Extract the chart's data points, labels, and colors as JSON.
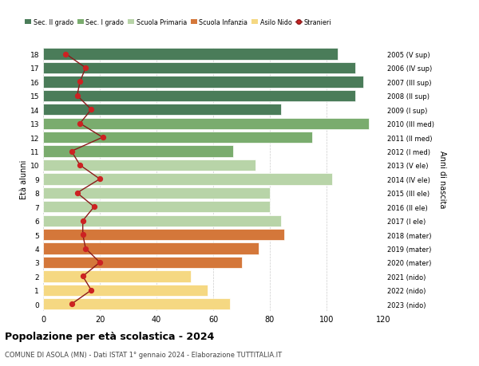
{
  "ages": [
    18,
    17,
    16,
    15,
    14,
    13,
    12,
    11,
    10,
    9,
    8,
    7,
    6,
    5,
    4,
    3,
    2,
    1,
    0
  ],
  "years": [
    "2005 (V sup)",
    "2006 (IV sup)",
    "2007 (III sup)",
    "2008 (II sup)",
    "2009 (I sup)",
    "2010 (III med)",
    "2011 (II med)",
    "2012 (I med)",
    "2013 (V ele)",
    "2014 (IV ele)",
    "2015 (III ele)",
    "2016 (II ele)",
    "2017 (I ele)",
    "2018 (mater)",
    "2019 (mater)",
    "2020 (mater)",
    "2021 (nido)",
    "2022 (nido)",
    "2023 (nido)"
  ],
  "bar_values": [
    104,
    110,
    113,
    110,
    84,
    115,
    95,
    67,
    75,
    102,
    80,
    80,
    84,
    85,
    76,
    70,
    52,
    58,
    66
  ],
  "stranieri": [
    8,
    15,
    13,
    12,
    17,
    13,
    21,
    10,
    13,
    20,
    12,
    18,
    14,
    14,
    15,
    20,
    14,
    17,
    10
  ],
  "bar_colors": {
    "Sec. II grado": "#4a7c59",
    "Sec. I grado": "#7aac6e",
    "Scuola Primaria": "#b8d4a8",
    "Scuola Infanzia": "#d4773a",
    "Asilo Nido": "#f5d882"
  },
  "age_category": {
    "18": "Sec. II grado",
    "17": "Sec. II grado",
    "16": "Sec. II grado",
    "15": "Sec. II grado",
    "14": "Sec. II grado",
    "13": "Sec. I grado",
    "12": "Sec. I grado",
    "11": "Sec. I grado",
    "10": "Scuola Primaria",
    "9": "Scuola Primaria",
    "8": "Scuola Primaria",
    "7": "Scuola Primaria",
    "6": "Scuola Primaria",
    "5": "Scuola Infanzia",
    "4": "Scuola Infanzia",
    "3": "Scuola Infanzia",
    "2": "Asilo Nido",
    "1": "Asilo Nido",
    "0": "Asilo Nido"
  },
  "legend_labels": [
    "Sec. II grado",
    "Sec. I grado",
    "Scuola Primaria",
    "Scuola Infanzia",
    "Asilo Nido",
    "Stranieri"
  ],
  "legend_colors": [
    "#4a7c59",
    "#7aac6e",
    "#b8d4a8",
    "#d4773a",
    "#f5d882",
    "#cc2222"
  ],
  "title": "Popolazione per età scolastica - 2024",
  "subtitle": "COMUNE DI ASOLA (MN) - Dati ISTAT 1° gennaio 2024 - Elaborazione TUTTITALIA.IT",
  "ylabel_left": "Età alunni",
  "ylabel_right": "Anni di nascita",
  "xlim": [
    0,
    120
  ],
  "xticks": [
    0,
    20,
    40,
    60,
    80,
    100,
    120
  ],
  "bg_color": "#ffffff",
  "grid_color": "#cccccc",
  "stranieri_line_color": "#8b1a1a",
  "stranieri_dot_color": "#cc2222"
}
